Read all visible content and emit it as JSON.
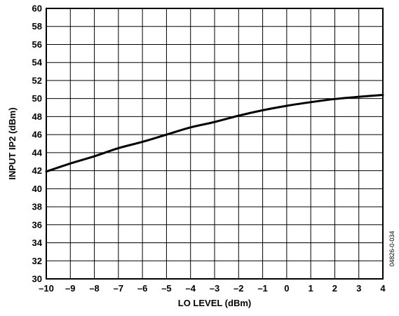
{
  "chart_data": {
    "type": "line",
    "xlabel": "LO LEVEL (dBm)",
    "ylabel": "INPUT  IP2 (dBm)",
    "xlim": [
      -10,
      4
    ],
    "ylim": [
      30,
      60
    ],
    "x_ticks": [
      -10,
      -9,
      -8,
      -7,
      -6,
      -5,
      -4,
      -3,
      -2,
      -1,
      0,
      1,
      2,
      3,
      4
    ],
    "x_tick_labels": [
      "–10",
      "–9",
      "–8",
      "–7",
      "–6",
      "–5",
      "–4",
      "–3",
      "–2",
      "–1",
      "0",
      "1",
      "2",
      "3",
      "4"
    ],
    "y_ticks": [
      30,
      32,
      34,
      36,
      38,
      40,
      42,
      44,
      46,
      48,
      50,
      52,
      54,
      56,
      58,
      60
    ],
    "y_tick_labels": [
      "30",
      "32",
      "34",
      "36",
      "38",
      "40",
      "42",
      "44",
      "46",
      "48",
      "50",
      "52",
      "54",
      "56",
      "58",
      "60"
    ],
    "grid": true,
    "series": [
      {
        "x": [
          -10,
          -9,
          -8,
          -7,
          -6,
          -5,
          -4,
          -3,
          -2,
          -1,
          0,
          1,
          2,
          3,
          4
        ],
        "y": [
          41.9,
          42.8,
          43.6,
          44.5,
          45.2,
          46.0,
          46.8,
          47.4,
          48.1,
          48.7,
          49.2,
          49.6,
          49.95,
          50.2,
          50.4
        ]
      }
    ],
    "line_color": "#000000",
    "grid_color": "#000000"
  },
  "figure_id": "04826-0-034"
}
